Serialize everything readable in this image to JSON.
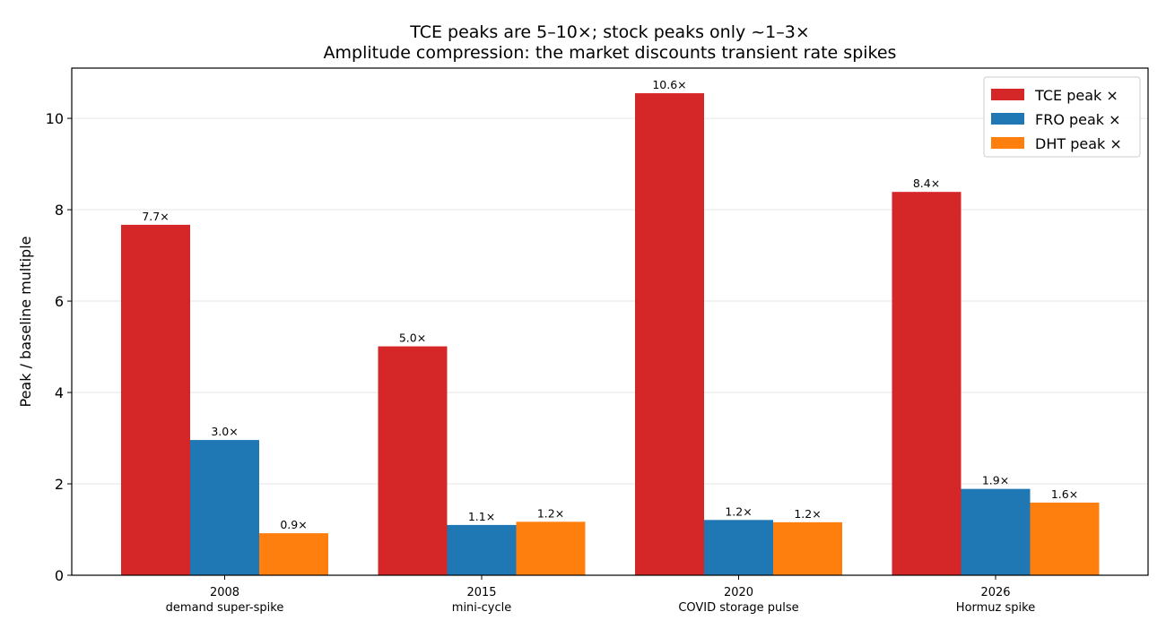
{
  "chart_data": {
    "type": "bar",
    "title": "TCE peaks are 5–10×; stock peaks only ~1–3×",
    "subtitle": "Amplitude compression: the market discounts transient rate spikes",
    "xlabel": "",
    "ylabel": "Peak / baseline multiple",
    "ylim": [
      0,
      11.1
    ],
    "yticks": [
      0,
      2,
      4,
      6,
      8,
      10
    ],
    "grid": true,
    "legend_position": "top-right",
    "categories": [
      {
        "year": "2008",
        "label": "demand super-spike"
      },
      {
        "year": "2015",
        "label": "mini-cycle"
      },
      {
        "year": "2020",
        "label": "COVID storage pulse"
      },
      {
        "year": "2026",
        "label": "Hormuz spike"
      }
    ],
    "series": [
      {
        "name": "TCE peak ×",
        "color": "#d62728",
        "values": [
          7.67,
          5.01,
          10.55,
          8.39
        ],
        "labels": [
          "7.7×",
          "5.0×",
          "10.6×",
          "8.4×"
        ]
      },
      {
        "name": "FRO peak ×",
        "color": "#1f77b4",
        "values": [
          2.96,
          1.1,
          1.21,
          1.89
        ],
        "labels": [
          "3.0×",
          "1.1×",
          "1.2×",
          "1.9×"
        ]
      },
      {
        "name": "DHT peak ×",
        "color": "#ff7f0e",
        "values": [
          0.92,
          1.17,
          1.16,
          1.59
        ],
        "labels": [
          "0.9×",
          "1.2×",
          "1.2×",
          "1.6×"
        ]
      }
    ]
  }
}
